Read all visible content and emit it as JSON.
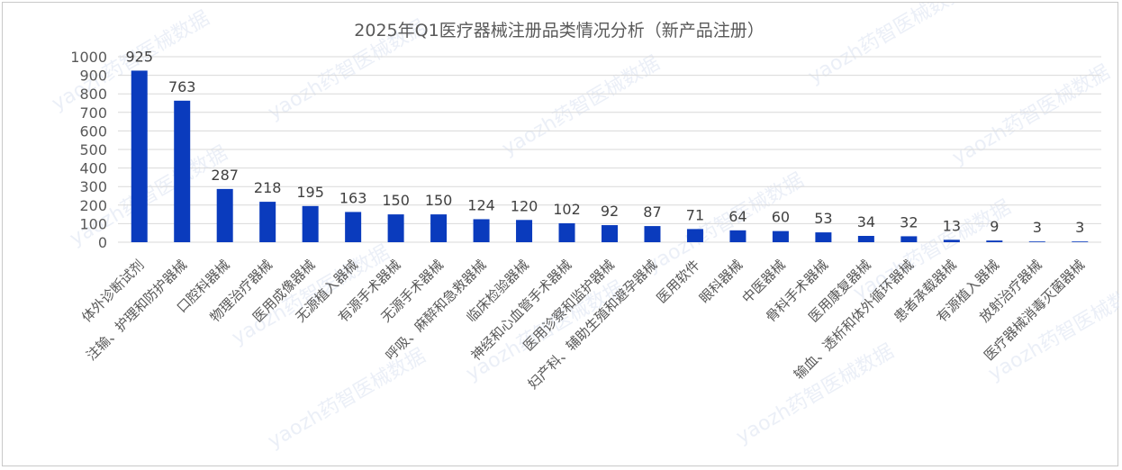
{
  "chart_data": {
    "type": "bar",
    "title": "2025年Q1医疗器械注册品类情况分析（新产品注册）",
    "xlabel": "",
    "ylabel": "",
    "ylim": [
      0,
      1000
    ],
    "yticks": [
      0,
      100,
      200,
      300,
      400,
      500,
      600,
      700,
      800,
      900,
      1000
    ],
    "grid": true,
    "bar_color": "#0a3bbd",
    "categories": [
      "体外诊断试剂",
      "注输、护理和防护器械",
      "口腔科器械",
      "物理治疗器械",
      "医用成像器械",
      "无源植入器械",
      "有源手术器械",
      "无源手术器械",
      "呼吸、麻醉和急救器械",
      "临床检验器械",
      "神经和心血管手术器械",
      "医用诊察和监护器械",
      "妇产科、辅助生殖和避孕器械",
      "医用软件",
      "眼科器械",
      "中医器械",
      "骨科手术器械",
      "医用康复器械",
      "输血、透析和体外循环器械",
      "患者承载器械",
      "有源植入器械",
      "放射治疗器械",
      "医疗器械消毒灭菌器械"
    ],
    "values": [
      925,
      763,
      287,
      218,
      195,
      163,
      150,
      150,
      124,
      120,
      102,
      92,
      87,
      71,
      64,
      60,
      53,
      34,
      32,
      13,
      9,
      3,
      3
    ]
  },
  "watermark": {
    "text": "yaozh药智医械数据"
  }
}
